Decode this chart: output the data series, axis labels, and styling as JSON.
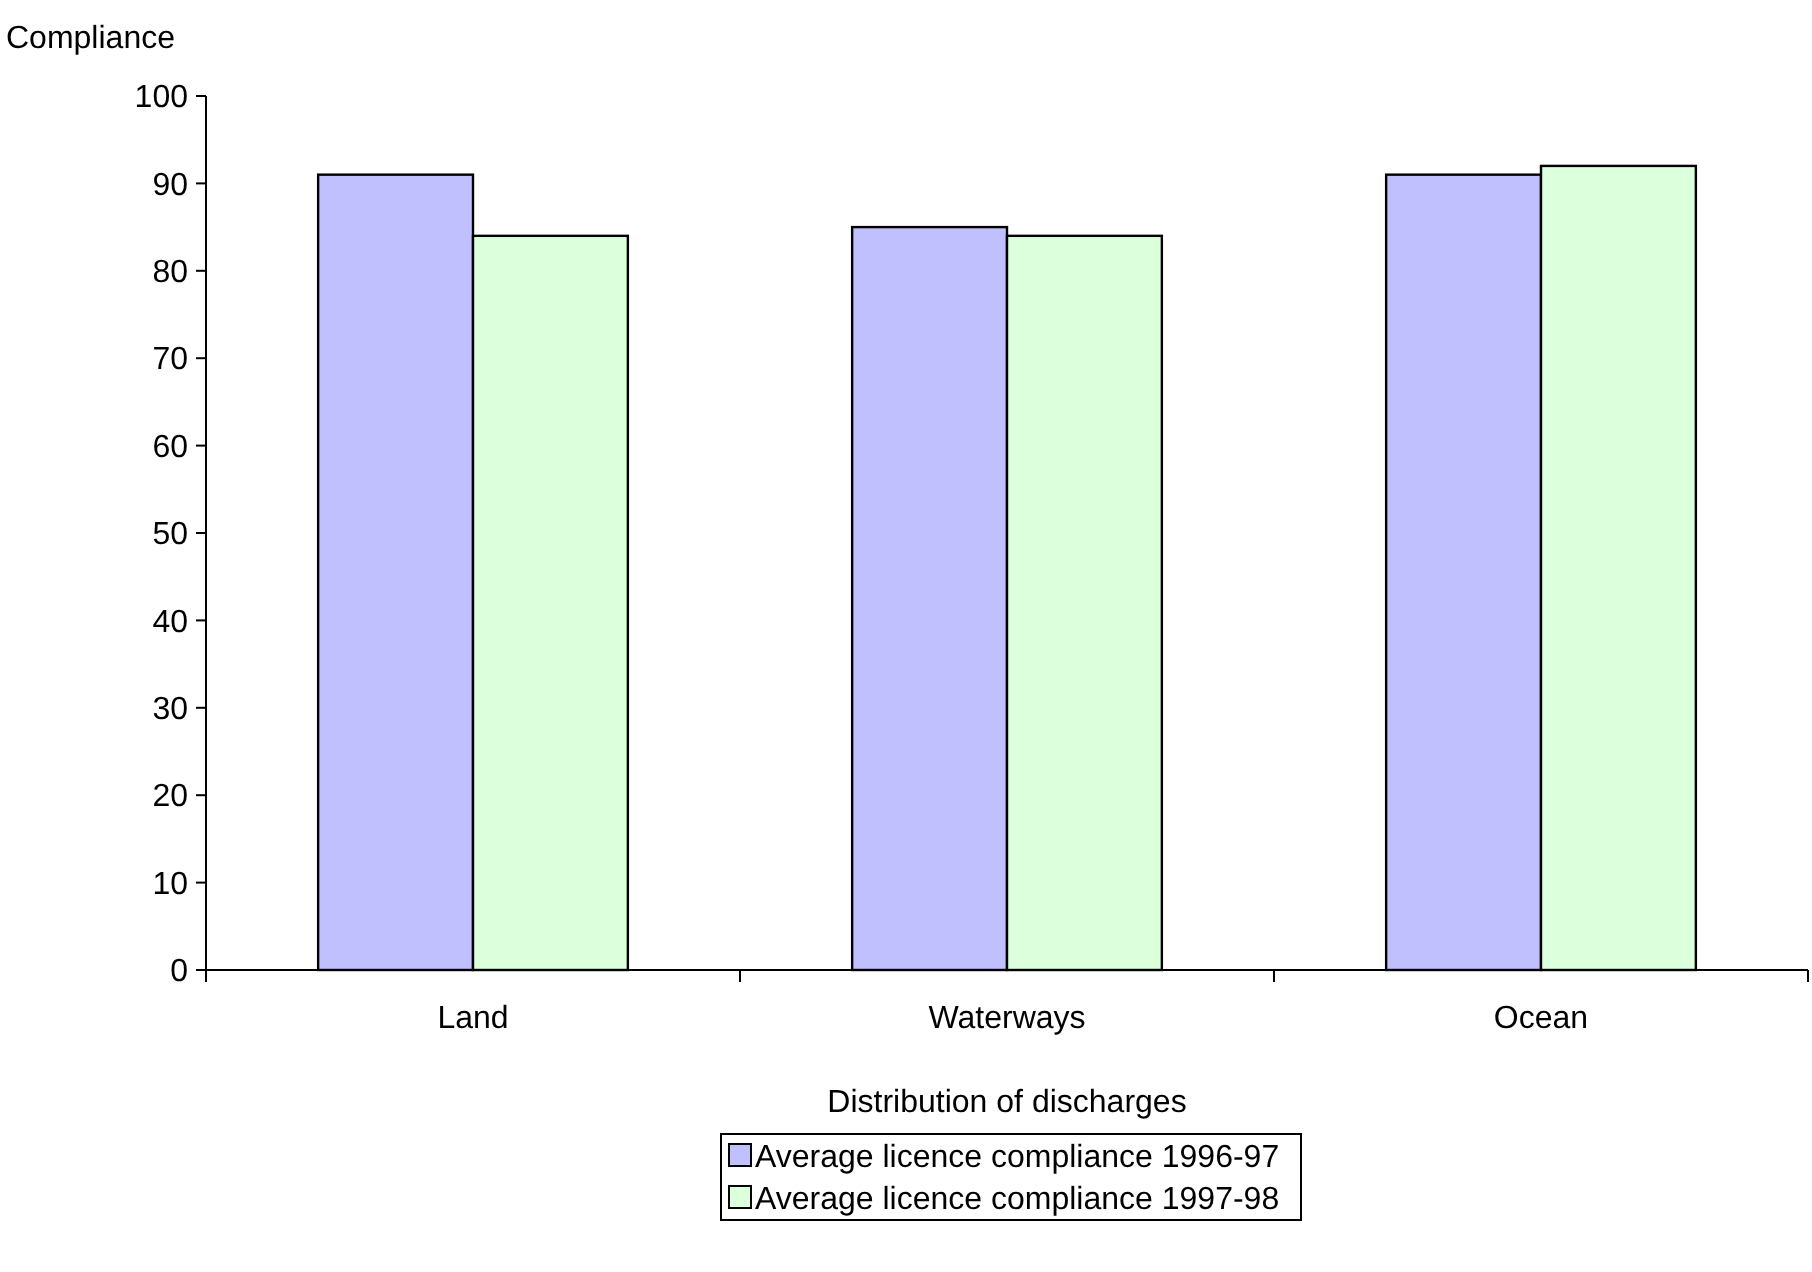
{
  "chart_data": {
    "type": "bar",
    "xlabel": "Distribution of discharges",
    "ylabel": "Compliance",
    "categories": [
      "Land",
      "Waterways",
      "Ocean"
    ],
    "series": [
      {
        "name": "Average licence compliance 1996-97",
        "color": "#c0c0ff",
        "values": [
          91,
          85,
          91
        ]
      },
      {
        "name": "Average licence compliance 1997-98",
        "color": "#dcffdc",
        "values": [
          84,
          84,
          92
        ]
      }
    ],
    "ylim": [
      0,
      100
    ],
    "yticks": [
      0,
      10,
      20,
      30,
      40,
      50,
      60,
      70,
      80,
      90,
      100
    ],
    "grid": false,
    "legend": "bottom"
  }
}
